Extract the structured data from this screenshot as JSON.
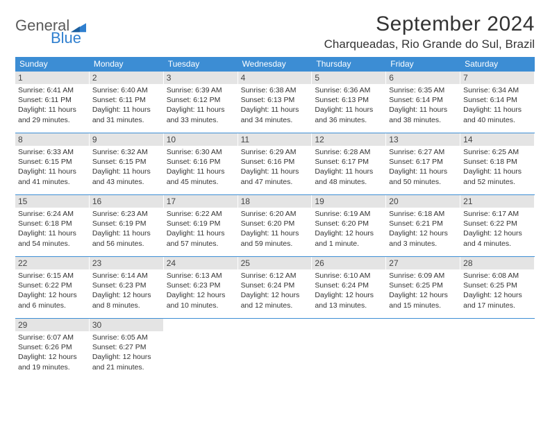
{
  "logo": {
    "general": "General",
    "blue": "Blue"
  },
  "header": {
    "month_title": "September 2024",
    "location": "Charqueadas, Rio Grande do Sul, Brazil"
  },
  "colors": {
    "header_bar": "#3c8dd4",
    "day_number_bg": "#e4e4e4",
    "text": "#333333",
    "logo_blue": "#2f7fcf",
    "logo_gray": "#5a5a5a"
  },
  "dow": [
    "Sunday",
    "Monday",
    "Tuesday",
    "Wednesday",
    "Thursday",
    "Friday",
    "Saturday"
  ],
  "weeks": [
    [
      {
        "n": "1",
        "sunrise": "Sunrise: 6:41 AM",
        "sunset": "Sunset: 6:11 PM",
        "daylight": "Daylight: 11 hours and 29 minutes."
      },
      {
        "n": "2",
        "sunrise": "Sunrise: 6:40 AM",
        "sunset": "Sunset: 6:11 PM",
        "daylight": "Daylight: 11 hours and 31 minutes."
      },
      {
        "n": "3",
        "sunrise": "Sunrise: 6:39 AM",
        "sunset": "Sunset: 6:12 PM",
        "daylight": "Daylight: 11 hours and 33 minutes."
      },
      {
        "n": "4",
        "sunrise": "Sunrise: 6:38 AM",
        "sunset": "Sunset: 6:13 PM",
        "daylight": "Daylight: 11 hours and 34 minutes."
      },
      {
        "n": "5",
        "sunrise": "Sunrise: 6:36 AM",
        "sunset": "Sunset: 6:13 PM",
        "daylight": "Daylight: 11 hours and 36 minutes."
      },
      {
        "n": "6",
        "sunrise": "Sunrise: 6:35 AM",
        "sunset": "Sunset: 6:14 PM",
        "daylight": "Daylight: 11 hours and 38 minutes."
      },
      {
        "n": "7",
        "sunrise": "Sunrise: 6:34 AM",
        "sunset": "Sunset: 6:14 PM",
        "daylight": "Daylight: 11 hours and 40 minutes."
      }
    ],
    [
      {
        "n": "8",
        "sunrise": "Sunrise: 6:33 AM",
        "sunset": "Sunset: 6:15 PM",
        "daylight": "Daylight: 11 hours and 41 minutes."
      },
      {
        "n": "9",
        "sunrise": "Sunrise: 6:32 AM",
        "sunset": "Sunset: 6:15 PM",
        "daylight": "Daylight: 11 hours and 43 minutes."
      },
      {
        "n": "10",
        "sunrise": "Sunrise: 6:30 AM",
        "sunset": "Sunset: 6:16 PM",
        "daylight": "Daylight: 11 hours and 45 minutes."
      },
      {
        "n": "11",
        "sunrise": "Sunrise: 6:29 AM",
        "sunset": "Sunset: 6:16 PM",
        "daylight": "Daylight: 11 hours and 47 minutes."
      },
      {
        "n": "12",
        "sunrise": "Sunrise: 6:28 AM",
        "sunset": "Sunset: 6:17 PM",
        "daylight": "Daylight: 11 hours and 48 minutes."
      },
      {
        "n": "13",
        "sunrise": "Sunrise: 6:27 AM",
        "sunset": "Sunset: 6:17 PM",
        "daylight": "Daylight: 11 hours and 50 minutes."
      },
      {
        "n": "14",
        "sunrise": "Sunrise: 6:25 AM",
        "sunset": "Sunset: 6:18 PM",
        "daylight": "Daylight: 11 hours and 52 minutes."
      }
    ],
    [
      {
        "n": "15",
        "sunrise": "Sunrise: 6:24 AM",
        "sunset": "Sunset: 6:18 PM",
        "daylight": "Daylight: 11 hours and 54 minutes."
      },
      {
        "n": "16",
        "sunrise": "Sunrise: 6:23 AM",
        "sunset": "Sunset: 6:19 PM",
        "daylight": "Daylight: 11 hours and 56 minutes."
      },
      {
        "n": "17",
        "sunrise": "Sunrise: 6:22 AM",
        "sunset": "Sunset: 6:19 PM",
        "daylight": "Daylight: 11 hours and 57 minutes."
      },
      {
        "n": "18",
        "sunrise": "Sunrise: 6:20 AM",
        "sunset": "Sunset: 6:20 PM",
        "daylight": "Daylight: 11 hours and 59 minutes."
      },
      {
        "n": "19",
        "sunrise": "Sunrise: 6:19 AM",
        "sunset": "Sunset: 6:20 PM",
        "daylight": "Daylight: 12 hours and 1 minute."
      },
      {
        "n": "20",
        "sunrise": "Sunrise: 6:18 AM",
        "sunset": "Sunset: 6:21 PM",
        "daylight": "Daylight: 12 hours and 3 minutes."
      },
      {
        "n": "21",
        "sunrise": "Sunrise: 6:17 AM",
        "sunset": "Sunset: 6:22 PM",
        "daylight": "Daylight: 12 hours and 4 minutes."
      }
    ],
    [
      {
        "n": "22",
        "sunrise": "Sunrise: 6:15 AM",
        "sunset": "Sunset: 6:22 PM",
        "daylight": "Daylight: 12 hours and 6 minutes."
      },
      {
        "n": "23",
        "sunrise": "Sunrise: 6:14 AM",
        "sunset": "Sunset: 6:23 PM",
        "daylight": "Daylight: 12 hours and 8 minutes."
      },
      {
        "n": "24",
        "sunrise": "Sunrise: 6:13 AM",
        "sunset": "Sunset: 6:23 PM",
        "daylight": "Daylight: 12 hours and 10 minutes."
      },
      {
        "n": "25",
        "sunrise": "Sunrise: 6:12 AM",
        "sunset": "Sunset: 6:24 PM",
        "daylight": "Daylight: 12 hours and 12 minutes."
      },
      {
        "n": "26",
        "sunrise": "Sunrise: 6:10 AM",
        "sunset": "Sunset: 6:24 PM",
        "daylight": "Daylight: 12 hours and 13 minutes."
      },
      {
        "n": "27",
        "sunrise": "Sunrise: 6:09 AM",
        "sunset": "Sunset: 6:25 PM",
        "daylight": "Daylight: 12 hours and 15 minutes."
      },
      {
        "n": "28",
        "sunrise": "Sunrise: 6:08 AM",
        "sunset": "Sunset: 6:25 PM",
        "daylight": "Daylight: 12 hours and 17 minutes."
      }
    ],
    [
      {
        "n": "29",
        "sunrise": "Sunrise: 6:07 AM",
        "sunset": "Sunset: 6:26 PM",
        "daylight": "Daylight: 12 hours and 19 minutes."
      },
      {
        "n": "30",
        "sunrise": "Sunrise: 6:05 AM",
        "sunset": "Sunset: 6:27 PM",
        "daylight": "Daylight: 12 hours and 21 minutes."
      },
      null,
      null,
      null,
      null,
      null
    ]
  ]
}
